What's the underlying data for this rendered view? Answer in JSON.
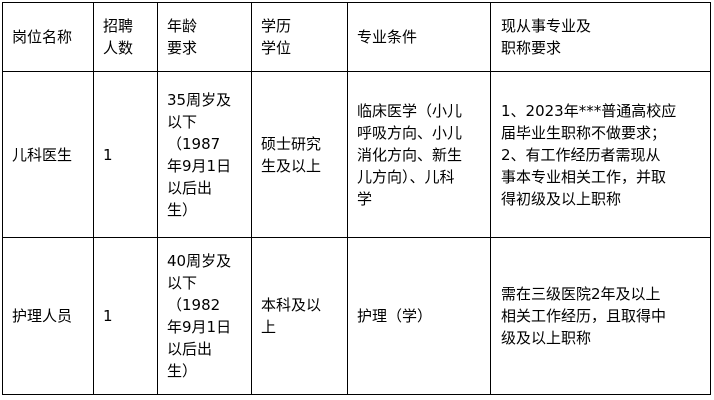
{
  "headers": [
    "岗位名称",
    "招聘\n人数",
    "年龄\n要求",
    "学历\n学位",
    "专业条件",
    "现从事专业及\n职称要求"
  ],
  "rows": [
    {
      "position": "儿科医生",
      "count": "1",
      "age": "35周岁及\n以下\n（1987\n年9月1日\n以后出\n生）",
      "education": "硕士研究\n生及以上",
      "major": "临床医学（小儿\n呼吸方向、小儿\n消化方向、新生\n儿方向）、儿科\n学",
      "requirement": "1、2023年***普通高校应\n届毕业生职称不做要求；\n2、有工作经历者需现从\n事本专业相关工作，并取\n得初级及以上职称"
    },
    {
      "position": "护理人员",
      "count": "1",
      "age": "40周岁及\n以下\n（1982\n年9月1日\n以后出\n生）",
      "education": "本科及以\n上",
      "major": "护理（学）",
      "requirement": "需在三级医院2年及以上\n相关工作经历，且取得中\n级及以上职称"
    }
  ]
}
